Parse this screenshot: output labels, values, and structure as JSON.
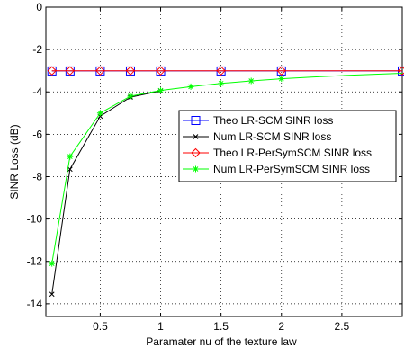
{
  "chart_data": {
    "type": "line",
    "title": "",
    "xlabel": "Paramater nu of the texture law",
    "ylabel": "SINR Loss (dB)",
    "xlim": [
      0.05,
      3.0
    ],
    "ylim": [
      -14.6,
      0
    ],
    "xticks": [
      0.5,
      1,
      1.5,
      2,
      2.5
    ],
    "xtick_labels": [
      "0.5",
      "1",
      "1.5",
      "2",
      "2.5"
    ],
    "yticks": [
      0,
      -2,
      -4,
      -6,
      -8,
      -10,
      -12,
      -14
    ],
    "ytick_labels": [
      "0",
      "-2",
      "-4",
      "-6",
      "-8",
      "-10",
      "-12",
      "-14"
    ],
    "grid": true,
    "legend_position": "right",
    "series": [
      {
        "name": "Theo LR-SCM SINR loss",
        "color": "#0000ff",
        "marker": "square",
        "x": [
          0.1,
          0.25,
          0.5,
          0.75,
          1.0,
          1.5,
          2.0,
          3.0
        ],
        "y": [
          -3.01,
          -3.01,
          -3.01,
          -3.01,
          -3.01,
          -3.01,
          -3.01,
          -3.01
        ]
      },
      {
        "name": "Num LR-SCM SINR loss",
        "color": "#000000",
        "marker": "x",
        "x": [
          0.1,
          0.25,
          0.5,
          0.75,
          1.0
        ],
        "y": [
          -13.55,
          -7.65,
          -5.15,
          -4.25,
          -3.95
        ]
      },
      {
        "name": "Theo LR-PerSymSCM SINR loss",
        "color": "#ff0000",
        "marker": "diamond",
        "x": [
          0.1,
          0.25,
          0.5,
          0.75,
          1.0,
          1.5,
          2.0,
          3.0
        ],
        "y": [
          -3.0,
          -3.0,
          -3.0,
          -3.0,
          -3.0,
          -3.0,
          -3.0,
          -3.0
        ]
      },
      {
        "name": "Num LR-PerSymSCM SINR loss",
        "color": "#00ff00",
        "marker": "star",
        "x": [
          0.1,
          0.25,
          0.5,
          0.75,
          1.0,
          1.25,
          1.5,
          1.75,
          2.0,
          2.25,
          2.5,
          2.75,
          3.0
        ],
        "y": [
          -12.1,
          -7.05,
          -5.0,
          -4.2,
          -3.93,
          -3.75,
          -3.6,
          -3.48,
          -3.38,
          -3.3,
          -3.23,
          -3.17,
          -3.12
        ]
      }
    ]
  }
}
